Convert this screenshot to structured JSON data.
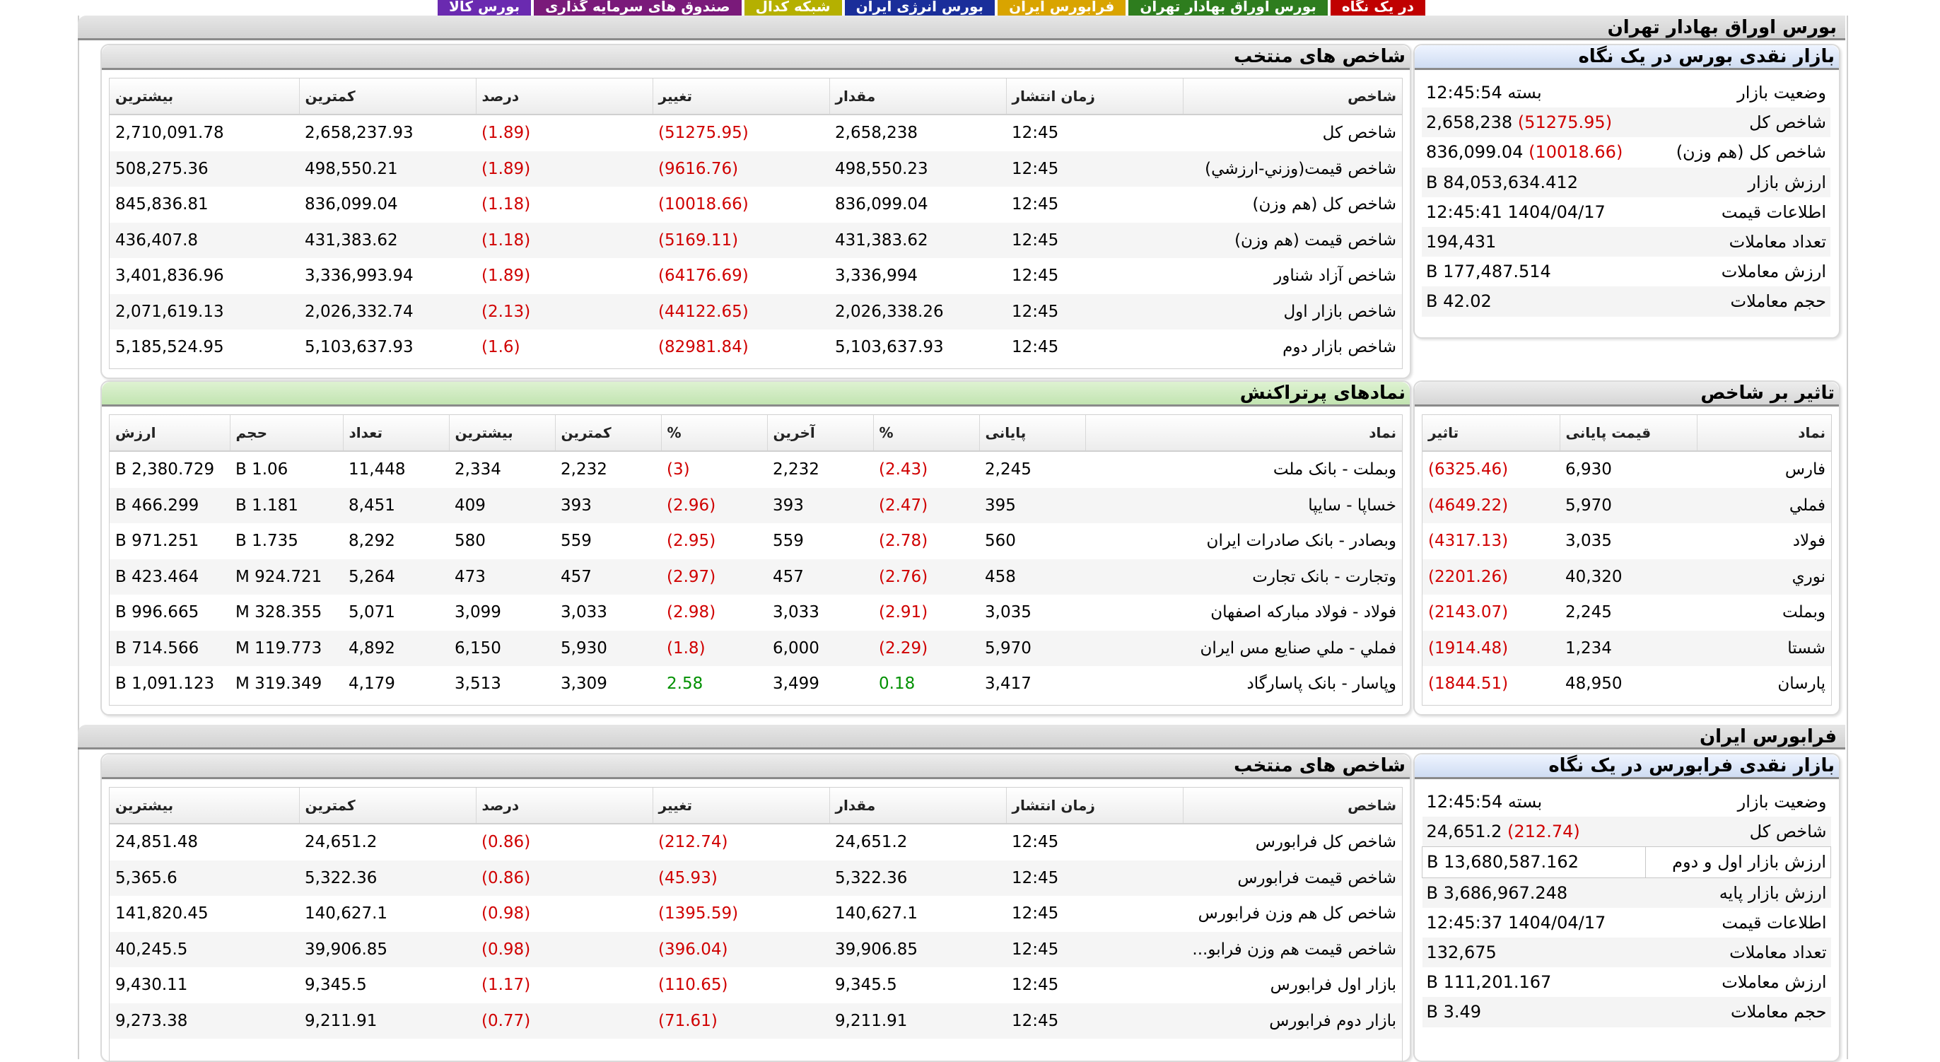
{
  "top_tabs": [
    {
      "label": "در یک نگاه",
      "color": "#c00000"
    },
    {
      "label": "بورس اوراق بهادار تهران",
      "color": "#2e7d1e"
    },
    {
      "label": "فرابورس ایران",
      "color": "#d9a400"
    },
    {
      "label": "بورس انرژی ایران",
      "color": "#1a2e9a"
    },
    {
      "label": "شبکه کدال",
      "color": "#b5b000"
    },
    {
      "label": "صندوق های سرمایه گذاری",
      "color": "#7a1a7a"
    },
    {
      "label": "بورس کالا",
      "color": "#6a2ab0"
    }
  ],
  "tse": {
    "section_title": "بورس اوراق بهادار تهران",
    "glance": {
      "title": "بازار نقدی بورس در یک نگاه",
      "rows": [
        {
          "label": "وضعیت بازار",
          "value": "بسته 12:45:54"
        },
        {
          "label": "شاخص کل",
          "value": "2,658,238",
          "change": "(51275.95)"
        },
        {
          "label": "شاخص کل (هم وزن)",
          "value": "836,099.04",
          "change": "(10018.66)"
        },
        {
          "label": "ارزش بازار",
          "value": "84,053,634.412 B"
        },
        {
          "label": "اطلاعات قیمت",
          "value": "1404/04/17 12:45:41"
        },
        {
          "label": "تعداد معاملات",
          "value": "194,431"
        },
        {
          "label": "ارزش معاملات",
          "value": "177,487.514 B"
        },
        {
          "label": "حجم معاملات",
          "value": "42.02 B"
        }
      ]
    },
    "indices": {
      "title": "شاخص های منتخب",
      "headers": [
        "شاخص",
        "زمان انتشار",
        "مقدار",
        "تغییر",
        "درصد",
        "کمترین",
        "بیشترین"
      ],
      "rows": [
        [
          "شاخص کل",
          "12:45",
          "2,658,238",
          "(51275.95)",
          "(1.89)",
          "2,658,237.93",
          "2,710,091.78"
        ],
        [
          "شاخص قیمت(وزني-ارزشي)",
          "12:45",
          "498,550.23",
          "(9616.76)",
          "(1.89)",
          "498,550.21",
          "508,275.36"
        ],
        [
          "شاخص کل (هم وزن)",
          "12:45",
          "836,099.04",
          "(10018.66)",
          "(1.18)",
          "836,099.04",
          "845,836.81"
        ],
        [
          "شاخص قیمت (هم وزن)",
          "12:45",
          "431,383.62",
          "(5169.11)",
          "(1.18)",
          "431,383.62",
          "436,407.8"
        ],
        [
          "شاخص آزاد شناور",
          "12:45",
          "3,336,994",
          "(64176.69)",
          "(1.89)",
          "3,336,993.94",
          "3,401,836.96"
        ],
        [
          "شاخص بازار اول",
          "12:45",
          "2,026,338.26",
          "(44122.65)",
          "(2.13)",
          "2,026,332.74",
          "2,071,619.13"
        ],
        [
          "شاخص بازار دوم",
          "12:45",
          "5,103,637.93",
          "(82981.84)",
          "(1.6)",
          "5,103,637.93",
          "5,185,524.95"
        ]
      ]
    },
    "impact": {
      "title": "تاثیر بر شاخص",
      "headers": [
        "نماد",
        "قیمت پایانی",
        "تاثیر"
      ],
      "rows": [
        [
          "فارس",
          "6,930",
          "(6325.46)"
        ],
        [
          "فملي",
          "5,970",
          "(4649.22)"
        ],
        [
          "فولاد",
          "3,035",
          "(4317.13)"
        ],
        [
          "نوري",
          "40,320",
          "(2201.26)"
        ],
        [
          "وبملت",
          "2,245",
          "(2143.07)"
        ],
        [
          "شستا",
          "1,234",
          "(1914.48)"
        ],
        [
          "پارسان",
          "48,950",
          "(1844.51)"
        ]
      ]
    },
    "active": {
      "title": "نمادهای پرتراکنش",
      "headers": [
        "نماد",
        "پایانی",
        "%",
        "آخرین",
        "%",
        "کمترین",
        "بیشترین",
        "تعداد",
        "حجم",
        "ارزش"
      ],
      "rows": [
        [
          "وبملت - بانک ملت",
          "2,245",
          "(2.43)",
          "2,232",
          "(3)",
          "2,232",
          "2,334",
          "11,448",
          "1.06 B",
          "2,380.729 B"
        ],
        [
          "خساپا - سايپا",
          "395",
          "(2.47)",
          "393",
          "(2.96)",
          "393",
          "409",
          "8,451",
          "1.181 B",
          "466.299 B"
        ],
        [
          "وبصادر - بانک صادرات ایران",
          "560",
          "(2.78)",
          "559",
          "(2.95)",
          "559",
          "580",
          "8,292",
          "1.735 B",
          "971.251 B"
        ],
        [
          "وتجارت - بانک تجارت",
          "458",
          "(2.76)",
          "457",
          "(2.97)",
          "457",
          "473",
          "5,264",
          "924.721 M",
          "423.464 B"
        ],
        [
          "فولاد - فولاد مبارکه اصفهان",
          "3,035",
          "(2.91)",
          "3,033",
          "(2.98)",
          "3,033",
          "3,099",
          "5,071",
          "328.355 M",
          "996.665 B"
        ],
        [
          "فملي - ملي صنایع مس ایران",
          "5,970",
          "(2.29)",
          "6,000",
          "(1.8)",
          "5,930",
          "6,150",
          "4,892",
          "119.773 M",
          "714.566 B"
        ],
        [
          "وپاسار - بانک پاسارگاد",
          "3,417",
          "0.18",
          "3,499",
          "2.58",
          "3,309",
          "3,513",
          "4,179",
          "319.349 M",
          "1,091.123 B"
        ]
      ]
    }
  },
  "ifb": {
    "section_title": "فرابورس ایران",
    "glance": {
      "title": "بازار نقدی فرابورس در یک نگاه",
      "rows": [
        {
          "label": "وضعیت بازار",
          "value": "بسته 12:45:54"
        },
        {
          "label": "شاخص کل",
          "value": "24,651.2",
          "change": "(212.74)"
        },
        {
          "label": "ارزش بازار اول و دوم",
          "value": "13,680,587.162 B"
        },
        {
          "label": "ارزش بازار پایه",
          "value": "3,686,967.248 B"
        },
        {
          "label": "اطلاعات قیمت",
          "value": "1404/04/17 12:45:37"
        },
        {
          "label": "تعداد معاملات",
          "value": "132,675"
        },
        {
          "label": "ارزش معاملات",
          "value": "111,201.167 B"
        },
        {
          "label": "حجم معاملات",
          "value": "3.49 B"
        }
      ]
    },
    "indices": {
      "title": "شاخص های منتخب",
      "headers": [
        "شاخص",
        "زمان انتشار",
        "مقدار",
        "تغییر",
        "درصد",
        "کمترین",
        "بیشترین"
      ],
      "rows": [
        [
          "شاخص کل فرابورس",
          "12:45",
          "24,651.2",
          "(212.74)",
          "(0.86)",
          "24,651.2",
          "24,851.48"
        ],
        [
          "شاخص قیمت فرابورس",
          "12:45",
          "5,322.36",
          "(45.93)",
          "(0.86)",
          "5,322.36",
          "5,365.6"
        ],
        [
          "شاخص کل هم وزن فرابورس",
          "12:45",
          "140,627.1",
          "(1395.59)",
          "(0.98)",
          "140,627.1",
          "141,820.45"
        ],
        [
          "شاخص قیمت هم وزن فرابو...",
          "12:45",
          "39,906.85",
          "(396.04)",
          "(0.98)",
          "39,906.85",
          "40,245.5"
        ],
        [
          "بازار اول فرابورس",
          "12:45",
          "9,345.5",
          "(110.65)",
          "(1.17)",
          "9,345.5",
          "9,430.11"
        ],
        [
          "بازار دوم فرابورس",
          "12:45",
          "9,211.91",
          "(71.61)",
          "(0.77)",
          "9,211.91",
          "9,273.38"
        ]
      ]
    }
  }
}
